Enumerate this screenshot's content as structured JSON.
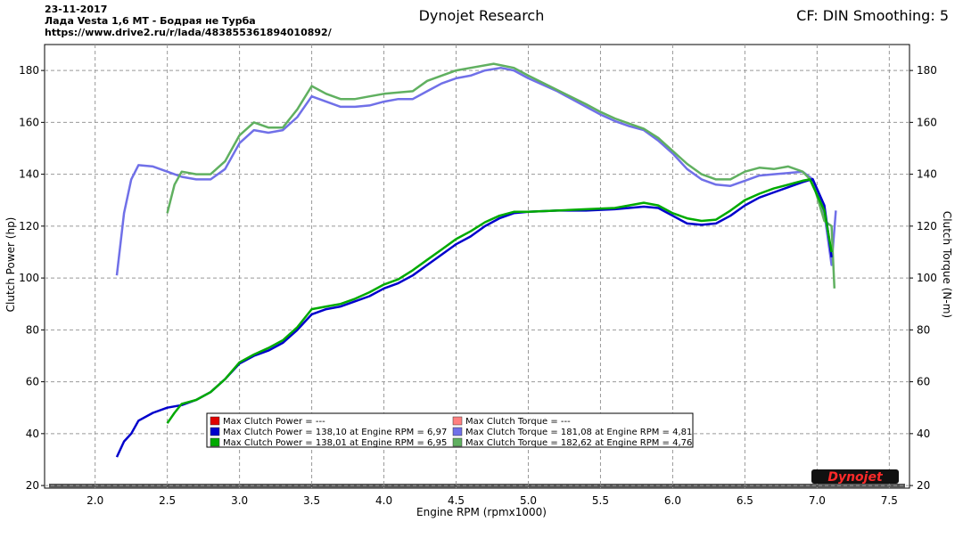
{
  "chart_data": {
    "type": "line",
    "header_lines": [
      "23-11-2017",
      "Лада Vesta 1,6 MT - Бодрая не Турба",
      "https://www.drive2.ru/r/lada/483855361894010892/"
    ],
    "title": "Dynojet Research",
    "subtitle": "CF: DIN Smoothing: 5",
    "x_label": "Engine RPM (rpmx1000)",
    "y_label": "Clutch Power (hp)",
    "y2_label": "Clutch Torque (N-m)",
    "logo": "Dynojet",
    "grid": true,
    "xlim": [
      1.65,
      7.64
    ],
    "ylim": [
      19,
      190
    ],
    "y2lim": [
      19,
      190
    ],
    "xticks": [
      {
        "value": 2.0,
        "label": "2.0"
      },
      2.5,
      {
        "value": 3.0,
        "label": "3.0"
      },
      3.5,
      {
        "value": 4.0,
        "label": "4.0"
      },
      4.5,
      {
        "value": 5.0,
        "label": "5.0"
      },
      5.5,
      {
        "value": 6.0,
        "label": "6.0"
      },
      6.5,
      {
        "value": 7.0,
        "label": "7.0"
      },
      7.5
    ],
    "yticks": [
      20,
      40,
      60,
      80,
      100,
      120,
      140,
      160,
      180
    ],
    "y2ticks": [
      20,
      40,
      60,
      80,
      100,
      120,
      140,
      160,
      180
    ],
    "series": [
      {
        "name": "Max Clutch Power = ---",
        "color": "#e00000",
        "x": [],
        "values": []
      },
      {
        "name": "Max Clutch Power = 138,10 at Engine RPM = 6,97",
        "color": "#0000cc",
        "x": [
          2.15,
          2.2,
          2.25,
          2.3,
          2.4,
          2.5,
          2.6,
          2.7,
          2.8,
          2.9,
          3.0,
          3.1,
          3.2,
          3.3,
          3.4,
          3.5,
          3.6,
          3.7,
          3.8,
          3.9,
          4.0,
          4.1,
          4.2,
          4.3,
          4.4,
          4.5,
          4.6,
          4.7,
          4.8,
          4.9,
          5.0,
          5.2,
          5.4,
          5.6,
          5.8,
          5.9,
          6.0,
          6.1,
          6.2,
          6.3,
          6.4,
          6.5,
          6.6,
          6.7,
          6.8,
          6.9,
          6.97,
          7.05,
          7.1
        ],
        "values": [
          31,
          37,
          40,
          45,
          48,
          50,
          51,
          53,
          56,
          61,
          67,
          70,
          72,
          75,
          80,
          86,
          88,
          89,
          91,
          93,
          96,
          98,
          101,
          105,
          109,
          113,
          116,
          120,
          123,
          125,
          125.5,
          126,
          126,
          126.5,
          127.5,
          127,
          124,
          121,
          120.5,
          121,
          124,
          128,
          131,
          133,
          135,
          137,
          138.1,
          128,
          108
        ]
      },
      {
        "name": "Max Clutch Power = 138,01 at Engine RPM = 6,95",
        "color": "#00aa00",
        "x": [
          2.5,
          2.55,
          2.6,
          2.7,
          2.8,
          2.9,
          3.0,
          3.1,
          3.2,
          3.3,
          3.4,
          3.5,
          3.6,
          3.7,
          3.8,
          3.9,
          4.0,
          4.1,
          4.2,
          4.3,
          4.4,
          4.5,
          4.6,
          4.7,
          4.8,
          4.9,
          5.0,
          5.2,
          5.4,
          5.6,
          5.8,
          5.9,
          6.0,
          6.1,
          6.2,
          6.3,
          6.4,
          6.5,
          6.6,
          6.7,
          6.8,
          6.9,
          6.95,
          7.05,
          7.1
        ],
        "values": [
          44,
          48,
          51.5,
          53,
          56,
          61,
          67.5,
          70.5,
          73,
          76,
          81,
          88,
          89,
          90,
          92,
          94.5,
          97.5,
          99.5,
          103,
          107,
          111,
          115,
          118,
          121.5,
          124,
          125.5,
          125.5,
          126,
          126.5,
          127,
          129,
          128,
          125,
          123,
          122,
          122.5,
          126,
          130,
          132.5,
          134.5,
          136,
          137.5,
          138,
          126,
          110
        ]
      },
      {
        "name": "Max Clutch Torque = ---",
        "color": "#ff8080",
        "axis": "y2",
        "x": [],
        "values": []
      },
      {
        "name": "Max Clutch Torque = 181,08 at Engine RPM = 4,81",
        "color": "#7070e8",
        "axis": "y2",
        "x": [
          2.15,
          2.2,
          2.25,
          2.3,
          2.4,
          2.5,
          2.6,
          2.7,
          2.8,
          2.9,
          3.0,
          3.1,
          3.2,
          3.3,
          3.4,
          3.5,
          3.6,
          3.7,
          3.8,
          3.9,
          4.0,
          4.1,
          4.2,
          4.3,
          4.4,
          4.5,
          4.6,
          4.7,
          4.81,
          4.9,
          5.0,
          5.2,
          5.4,
          5.5,
          5.6,
          5.7,
          5.8,
          5.9,
          6.0,
          6.1,
          6.2,
          6.3,
          6.4,
          6.5,
          6.6,
          6.7,
          6.8,
          6.9,
          6.97,
          7.05,
          7.1,
          7.13
        ],
        "values": [
          101,
          125,
          138,
          143.5,
          143,
          141,
          139,
          138,
          138,
          142,
          152,
          157,
          156,
          157,
          162,
          170,
          168,
          166,
          166,
          166.5,
          168,
          169,
          169,
          172,
          175,
          177,
          178,
          180,
          181,
          180,
          177,
          172,
          166,
          163,
          160.5,
          158.5,
          157,
          153,
          148,
          142,
          138,
          136,
          135.5,
          137.5,
          139.5,
          140,
          140.5,
          141,
          138,
          125,
          105,
          126
        ]
      },
      {
        "name": "Max Clutch Torque = 182,62 at Engine RPM = 4,76",
        "color": "#60b060",
        "axis": "y2",
        "x": [
          2.5,
          2.55,
          2.6,
          2.7,
          2.8,
          2.9,
          3.0,
          3.1,
          3.2,
          3.3,
          3.4,
          3.5,
          3.6,
          3.7,
          3.8,
          3.9,
          4.0,
          4.2,
          4.3,
          4.4,
          4.5,
          4.6,
          4.76,
          4.9,
          5.0,
          5.2,
          5.4,
          5.5,
          5.6,
          5.7,
          5.8,
          5.9,
          6.0,
          6.1,
          6.2,
          6.3,
          6.4,
          6.5,
          6.6,
          6.7,
          6.8,
          6.9,
          6.97,
          7.05,
          7.1,
          7.12
        ],
        "values": [
          125,
          136,
          141,
          140,
          140,
          145,
          155,
          160,
          158,
          158,
          165,
          174,
          171,
          169,
          169,
          170,
          171,
          172,
          176,
          178,
          180,
          181,
          182.6,
          181,
          178,
          172.5,
          167,
          164,
          161.5,
          159.5,
          157.5,
          154,
          149,
          144,
          140,
          138,
          138,
          141,
          142.5,
          142,
          143,
          141,
          137,
          122,
          120,
          96
        ]
      }
    ]
  }
}
